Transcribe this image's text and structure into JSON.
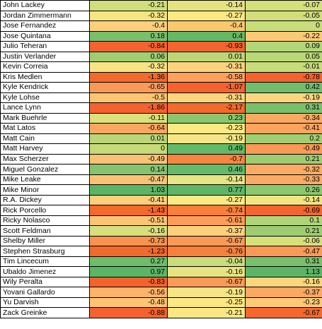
{
  "rows": [
    {
      "name": "John Lackey",
      "v": [
        "-0.21",
        "-0.14",
        "-0.07"
      ],
      "bg": [
        "#d0df7a",
        "#e5e380",
        "#d6e07b"
      ]
    },
    {
      "name": "Jordan Zimmermann",
      "v": [
        "-0.32",
        "-0.27",
        "-0.05"
      ],
      "bg": [
        "#f6e483",
        "#fde983",
        "#d1de7b"
      ]
    },
    {
      "name": "Jose Fernandez",
      "v": [
        "-0.4",
        "-0.4",
        "0"
      ],
      "bg": [
        "#fecf7c",
        "#fbc86f",
        "#c9dc7b"
      ]
    },
    {
      "name": "Jose Quintana",
      "v": [
        "0.18",
        "0.4",
        "-0.22"
      ],
      "bg": [
        "#78c06c",
        "#64b968",
        "#fcca76"
      ]
    },
    {
      "name": "Julio Teheran",
      "v": [
        "-0.84",
        "-0.93",
        "0.09"
      ],
      "bg": [
        "#f4622f",
        "#f4642f",
        "#b3d579"
      ]
    },
    {
      "name": "Justin Verlander",
      "v": [
        "0.06",
        "0.01",
        "0.05"
      ],
      "bg": [
        "#a1ce73",
        "#bcd677",
        "#bad777"
      ]
    },
    {
      "name": "Kevin Correia",
      "v": [
        "-0.32",
        "-0.31",
        "-0.01"
      ],
      "bg": [
        "#f6e483",
        "#fcd47d",
        "#c6db7a"
      ]
    },
    {
      "name": "Kris Medlen",
      "v": [
        "-1.36",
        "-0.58",
        "-0.78"
      ],
      "bg": [
        "#f26a2c",
        "#fca15b",
        "#f4622f"
      ]
    },
    {
      "name": "Kyle Kendrick",
      "v": [
        "-0.65",
        "-1.07",
        "0.42"
      ],
      "bg": [
        "#fa9a58",
        "#f4632f",
        "#71bd6b"
      ]
    },
    {
      "name": "Kyle Lohse",
      "v": [
        "-0.5",
        "-0.31",
        "-0.19"
      ],
      "bg": [
        "#fcc574",
        "#fcd67e",
        "#fdd57e"
      ]
    },
    {
      "name": "Lance Lynn",
      "v": [
        "-1.86",
        "-2.17",
        "0.31"
      ],
      "bg": [
        "#f4622f",
        "#f26a2c",
        "#78c06c"
      ]
    },
    {
      "name": "Mark Buehrle",
      "v": [
        "-0.11",
        "0.23",
        "-0.34"
      ],
      "bg": [
        "#dbe17c",
        "#8bc66e",
        "#fba962"
      ]
    },
    {
      "name": "Mat Latos",
      "v": [
        "-0.64",
        "-0.23",
        "-0.41"
      ],
      "bg": [
        "#fba762",
        "#fde983",
        "#fba460"
      ]
    },
    {
      "name": "Matt Cain",
      "v": [
        "0.01",
        "-0.19",
        "0.2"
      ],
      "bg": [
        "#bbd678",
        "#f5e584",
        "#a2ce73"
      ]
    },
    {
      "name": "Matt Harvey",
      "v": [
        "0",
        "0.49",
        "-0.49"
      ],
      "bg": [
        "#c5da79",
        "#63b968",
        "#fb9956"
      ]
    },
    {
      "name": "Max Scherzer",
      "v": [
        "-0.49",
        "-0.7",
        "0.21"
      ],
      "bg": [
        "#fcc172",
        "#f8853f",
        "#9dcc72"
      ]
    },
    {
      "name": "Miguel Gonzalez",
      "v": [
        "0.14",
        "0.46",
        "-0.32"
      ],
      "bg": [
        "#87c36e",
        "#66ba69",
        "#fbab64"
      ]
    },
    {
      "name": "Mike Leake",
      "v": [
        "-0.47",
        "-0.14",
        "-0.33"
      ],
      "bg": [
        "#fbc371",
        "#e8e481",
        "#fbab64"
      ]
    },
    {
      "name": "Mike Minor",
      "v": [
        "1.03",
        "0.77",
        "0.26"
      ],
      "bg": [
        "#5cb565",
        "#5fb666",
        "#8cc76e"
      ]
    },
    {
      "name": "R.A. Dickey",
      "v": [
        "-0.41",
        "-0.27",
        "-0.14"
      ],
      "bg": [
        "#fdce7b",
        "#fde983",
        "#f3e483"
      ]
    },
    {
      "name": "Rick Porcello",
      "v": [
        "-1.43",
        "-0.74",
        "-0.69"
      ],
      "bg": [
        "#f26a2c",
        "#f7803b",
        "#f4652f"
      ]
    },
    {
      "name": "Ricky Nolasco",
      "v": [
        "-0.51",
        "-0.61",
        "0.1"
      ],
      "bg": [
        "#fcc574",
        "#fc9e59",
        "#b0d378"
      ]
    },
    {
      "name": "Scott Feldman",
      "v": [
        "-0.16",
        "-0.37",
        "0.21"
      ],
      "bg": [
        "#d6df7b",
        "#fcd07c",
        "#9dcc72"
      ]
    },
    {
      "name": "Shelby Miller",
      "v": [
        "-0.73",
        "-0.67",
        "-0.06"
      ],
      "bg": [
        "#f9924e",
        "#fb9a58",
        "#d6e07b"
      ]
    },
    {
      "name": "Stephen Strasburg",
      "v": [
        "-1.23",
        "-0.76",
        "-0.47"
      ],
      "bg": [
        "#f26a2c",
        "#f7803b",
        "#fb9956"
      ]
    },
    {
      "name": "Tim Lincecum",
      "v": [
        "0.27",
        "-0.04",
        "0.31"
      ],
      "bg": [
        "#6fbd6a",
        "#cbdc7a",
        "#78c06c"
      ]
    },
    {
      "name": "Ubaldo Jimenez",
      "v": [
        "0.97",
        "-0.16",
        "1.13"
      ],
      "bg": [
        "#5cb565",
        "#e7e381",
        "#5cb565"
      ]
    },
    {
      "name": "Wily Peralta",
      "v": [
        "-0.83",
        "-0.67",
        "-0.16"
      ],
      "bg": [
        "#f4622f",
        "#fa9a58",
        "#fcd57e"
      ]
    },
    {
      "name": "Yovani Gallardo",
      "v": [
        "-0.56",
        "-0.19",
        "-0.37"
      ],
      "bg": [
        "#fbb46a",
        "#f5e584",
        "#fba962"
      ]
    },
    {
      "name": "Yu Darvish",
      "v": [
        "-0.48",
        "-0.25",
        "-0.23"
      ],
      "bg": [
        "#fcc473",
        "#fde983",
        "#fcca76"
      ]
    },
    {
      "name": "Zack Greinke",
      "v": [
        "-0.88",
        "-0.21",
        "-0.67"
      ],
      "bg": [
        "#f4622f",
        "#fae783",
        "#f5672f"
      ]
    }
  ]
}
